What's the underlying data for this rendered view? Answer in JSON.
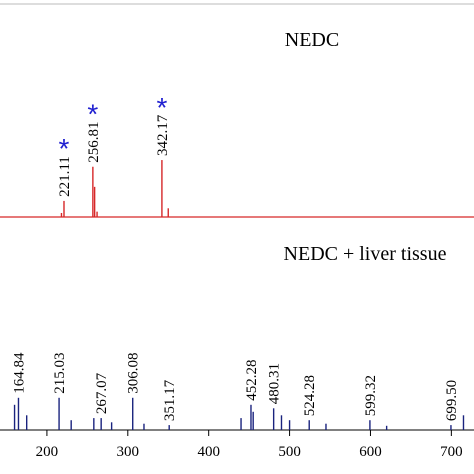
{
  "chart_data": [
    {
      "type": "spectrum",
      "title": "NEDC",
      "color": "#d62728",
      "marker": "*",
      "xlim": [
        142,
        728
      ],
      "ylim": [
        0,
        100
      ],
      "peaks": {
        "x": [
          221.11,
          256.81,
          342.17
        ],
        "values": [
          24,
          75,
          85
        ]
      },
      "minor_peaks": {
        "x": [
          218,
          259,
          350,
          262
        ],
        "values": [
          6,
          45,
          13,
          8
        ]
      }
    },
    {
      "type": "spectrum",
      "title": "NEDC + liver tissue",
      "color": "#1a237e",
      "xlim": [
        142,
        728
      ],
      "ylim": [
        0,
        100
      ],
      "xticks": [
        200,
        300,
        400,
        500,
        600,
        700
      ],
      "peaks": {
        "x": [
          164.84,
          215.03,
          267.07,
          306.08,
          351.17,
          452.28,
          480.31,
          524.28,
          599.32,
          699.5
        ],
        "values": [
          46,
          46,
          17,
          46,
          7,
          36,
          31,
          14,
          14,
          7
        ],
        "value_labels": [
          "164.84",
          "215.03",
          "267.07",
          "306.08",
          "351.17",
          "452.28",
          "480.31",
          "524.28",
          "599.32",
          "699.50"
        ]
      },
      "minor_peaks": {
        "x": [
          160,
          175,
          230,
          258,
          280,
          320,
          440,
          455,
          490,
          500,
          545,
          620,
          715
        ],
        "values": [
          36,
          21,
          14,
          17,
          11,
          9,
          17,
          26,
          21,
          14,
          9,
          6,
          21
        ]
      }
    }
  ]
}
